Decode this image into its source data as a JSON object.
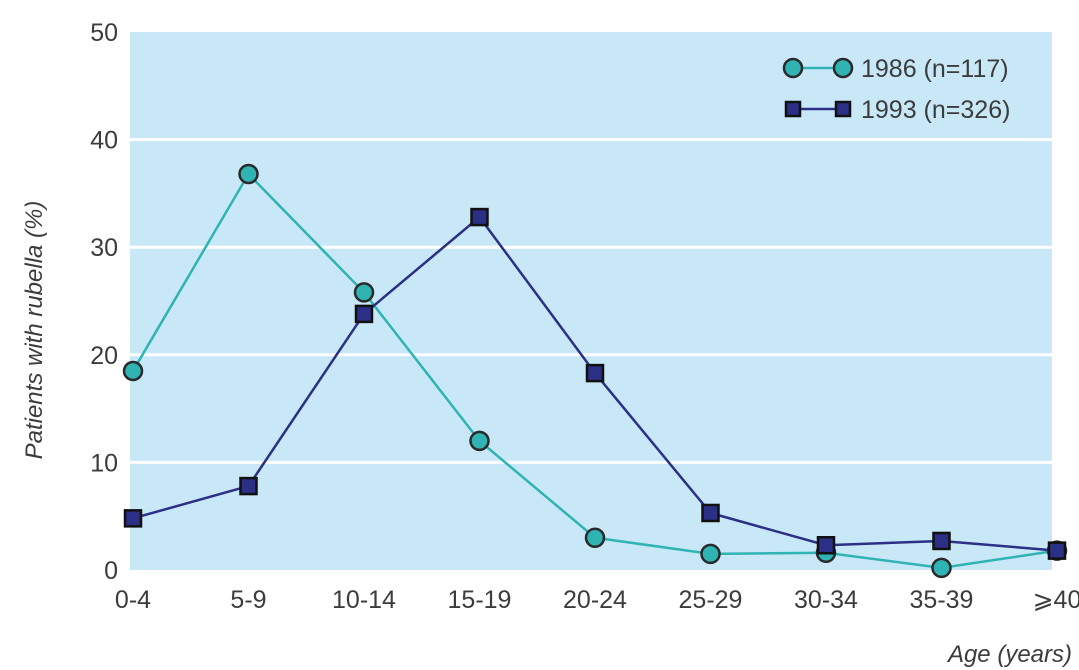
{
  "chart_data": {
    "type": "line",
    "title": "",
    "xlabel": "Age (years)",
    "ylabel": "Patients with rubella (%)",
    "categories": [
      "0-4",
      "5-9",
      "10-14",
      "15-19",
      "20-24",
      "25-29",
      "30-34",
      "35-39",
      "⩾40"
    ],
    "ylim": [
      0,
      50
    ],
    "yticks": [
      0,
      10,
      20,
      30,
      40,
      50
    ],
    "grid": true,
    "legend_position": "top-right",
    "series": [
      {
        "name": "1986 (n=117)",
        "marker": "circle",
        "color": "#2fb3b3",
        "values": [
          18.5,
          36.8,
          25.8,
          12.0,
          3.0,
          1.5,
          1.6,
          0.2,
          1.8
        ]
      },
      {
        "name": "1993 (n=326)",
        "marker": "square",
        "color": "#2b2f86",
        "values": [
          4.8,
          7.8,
          23.8,
          32.8,
          18.3,
          5.3,
          2.3,
          2.7,
          1.8
        ]
      }
    ],
    "colors": {
      "plot_background": "#c8e8f8",
      "gridline": "#ffffff",
      "text": "#3c3c3c"
    }
  }
}
